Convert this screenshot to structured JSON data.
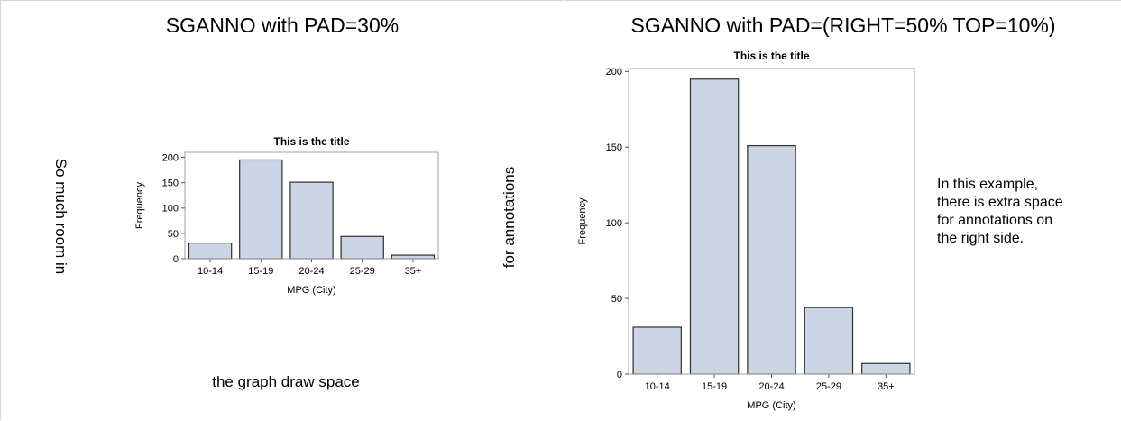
{
  "panels": [
    {
      "title": "SGANNO with PAD=30%",
      "annotations": {
        "left_vertical": "So much room in",
        "right_vertical": "for annotations",
        "bottom": "the graph draw space"
      }
    },
    {
      "title": "SGANNO with PAD=(RIGHT=50% TOP=10%)",
      "annotation_lines": [
        "In this example,",
        "there is extra space",
        "for annotations on",
        "the right side."
      ]
    }
  ],
  "colors": {
    "bar_fill": "#cbd5e4",
    "bar_stroke": "#2f2f2f",
    "frame": "#a0a0a0"
  },
  "chart_data": [
    {
      "type": "bar",
      "title": "This is the title",
      "xlabel": "MPG (City)",
      "ylabel": "Frequency",
      "categories": [
        "10-14",
        "15-19",
        "20-24",
        "25-29",
        "35+"
      ],
      "values": [
        31,
        195,
        151,
        44,
        7
      ],
      "ylim": [
        0,
        210
      ],
      "yticks": [
        0,
        50,
        100,
        150,
        200
      ],
      "grid": false
    },
    {
      "type": "bar",
      "title": "This is the title",
      "xlabel": "MPG (City)",
      "ylabel": "Frequency",
      "categories": [
        "10-14",
        "15-19",
        "20-24",
        "25-29",
        "35+"
      ],
      "values": [
        31,
        195,
        151,
        44,
        7
      ],
      "ylim": [
        0,
        202
      ],
      "yticks": [
        0,
        50,
        100,
        150,
        200
      ],
      "grid": false
    }
  ]
}
